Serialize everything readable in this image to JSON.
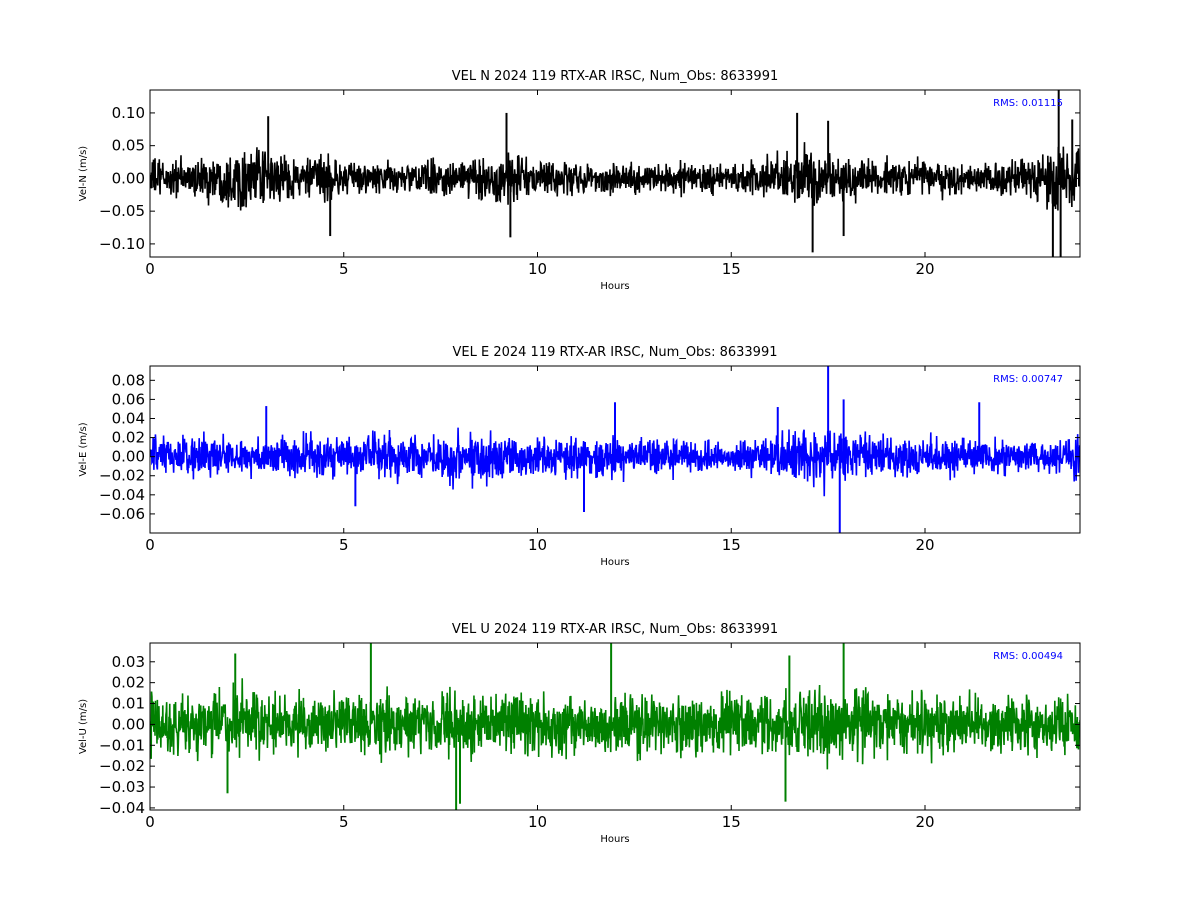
{
  "chart_data": [
    {
      "type": "line",
      "title": "VEL N 2024 119 RTX-AR  IRSC, Num_Obs: 8633991",
      "xlabel": "Hours",
      "ylabel": "Vel-N (m/s)",
      "rms_label": "RMS:  0.01115",
      "color": "#000000",
      "rms_color": "#0000ff",
      "xlim": [
        0,
        24
      ],
      "ylim": [
        -0.12,
        0.135
      ],
      "xticks": [
        "0",
        "5",
        "10",
        "15",
        "20"
      ],
      "yticks": [
        "−0.10",
        "−0.05",
        "0.00",
        "0.05",
        "0.10"
      ],
      "ytick_values": [
        -0.1,
        -0.05,
        0.0,
        0.05,
        0.1
      ],
      "series": [
        {
          "hours": [
            0,
            1,
            2,
            2.5,
            3,
            4,
            4.6,
            5,
            6,
            7,
            8,
            8.7,
            9.2,
            9.6,
            10,
            11,
            12,
            13,
            14,
            15,
            16,
            16.8,
            17.1,
            17.5,
            18,
            19,
            20,
            21,
            22,
            23,
            23.4,
            24
          ],
          "amplitude": [
            0.045,
            0.04,
            0.06,
            0.065,
            0.055,
            0.045,
            0.05,
            0.035,
            0.035,
            0.04,
            0.035,
            0.05,
            0.065,
            0.05,
            0.04,
            0.035,
            0.035,
            0.03,
            0.035,
            0.03,
            0.045,
            0.07,
            0.07,
            0.05,
            0.05,
            0.04,
            0.04,
            0.035,
            0.035,
            0.06,
            0.075,
            0.05
          ],
          "spikes": [
            [
              3.05,
              0.095
            ],
            [
              4.65,
              -0.088
            ],
            [
              9.2,
              0.1
            ],
            [
              9.3,
              -0.09
            ],
            [
              16.7,
              0.1
            ],
            [
              17.1,
              -0.113
            ],
            [
              17.5,
              0.088
            ],
            [
              17.9,
              -0.088
            ],
            [
              23.3,
              -0.12
            ],
            [
              23.45,
              0.135
            ],
            [
              23.5,
              -0.12
            ],
            [
              23.8,
              0.09
            ]
          ]
        }
      ]
    },
    {
      "type": "line",
      "title": "VEL E 2024 119 RTX-AR  IRSC, Num_Obs: 8633991",
      "xlabel": "Hours",
      "ylabel": "Vel-E (m/s)",
      "rms_label": "RMS:  0.00747",
      "color": "#0000ff",
      "rms_color": "#0000ff",
      "xlim": [
        0,
        24
      ],
      "ylim": [
        -0.08,
        0.095
      ],
      "xticks": [
        "0",
        "5",
        "10",
        "15",
        "20"
      ],
      "yticks": [
        "−0.06",
        "−0.04",
        "−0.02",
        "0.00",
        "0.02",
        "0.04",
        "0.06",
        "0.08"
      ],
      "ytick_values": [
        -0.06,
        -0.04,
        -0.02,
        0.0,
        0.02,
        0.04,
        0.06,
        0.08
      ],
      "series": [
        {
          "hours": [
            0,
            1,
            2,
            3,
            3.5,
            4,
            5,
            6,
            7,
            7.8,
            8.3,
            9,
            10,
            11,
            12,
            13,
            14,
            14.5,
            15,
            16,
            16.8,
            17.5,
            18,
            19,
            20,
            21,
            22,
            23,
            24
          ],
          "amplitude": [
            0.03,
            0.03,
            0.03,
            0.025,
            0.035,
            0.035,
            0.03,
            0.035,
            0.03,
            0.04,
            0.04,
            0.035,
            0.03,
            0.03,
            0.03,
            0.03,
            0.025,
            0.02,
            0.02,
            0.03,
            0.04,
            0.045,
            0.035,
            0.03,
            0.03,
            0.03,
            0.025,
            0.025,
            0.03
          ],
          "spikes": [
            [
              3.0,
              0.053
            ],
            [
              5.3,
              -0.052
            ],
            [
              11.2,
              -0.058
            ],
            [
              12.0,
              0.057
            ],
            [
              16.2,
              0.052
            ],
            [
              17.5,
              0.095
            ],
            [
              17.8,
              -0.08
            ],
            [
              17.9,
              0.06
            ],
            [
              21.4,
              0.057
            ]
          ]
        }
      ]
    },
    {
      "type": "line",
      "title": "VEL U 2024 119 RTX-AR  IRSC, Num_Obs: 8633991",
      "xlabel": "Hours",
      "ylabel": "Vel-U (m/s)",
      "rms_label": "RMS:  0.00494",
      "color": "#008000",
      "rms_color": "#0000ff",
      "xlim": [
        0,
        24
      ],
      "ylim": [
        -0.041,
        0.039
      ],
      "xticks": [
        "0",
        "5",
        "10",
        "15",
        "20"
      ],
      "yticks": [
        "−0.04",
        "−0.03",
        "−0.02",
        "−0.01",
        "0.00",
        "0.01",
        "0.02",
        "0.03"
      ],
      "ytick_values": [
        -0.04,
        -0.03,
        -0.02,
        -0.01,
        0.0,
        0.01,
        0.02,
        0.03
      ],
      "series": [
        {
          "hours": [
            0,
            1,
            2,
            3,
            4,
            5,
            6,
            7,
            8,
            9,
            10,
            11,
            12,
            13,
            14,
            15,
            16,
            17,
            18,
            19,
            20,
            21,
            22,
            23,
            24
          ],
          "amplitude": [
            0.02,
            0.02,
            0.025,
            0.02,
            0.02,
            0.02,
            0.022,
            0.02,
            0.022,
            0.02,
            0.022,
            0.02,
            0.022,
            0.02,
            0.02,
            0.02,
            0.022,
            0.025,
            0.025,
            0.02,
            0.02,
            0.02,
            0.02,
            0.02,
            0.02
          ],
          "spikes": [
            [
              2.2,
              0.034
            ],
            [
              2.0,
              -0.033
            ],
            [
              5.7,
              0.039
            ],
            [
              7.9,
              -0.041
            ],
            [
              8.0,
              -0.038
            ],
            [
              11.9,
              0.039
            ],
            [
              16.5,
              0.033
            ],
            [
              16.4,
              -0.037
            ],
            [
              17.9,
              0.039
            ]
          ]
        }
      ]
    }
  ]
}
